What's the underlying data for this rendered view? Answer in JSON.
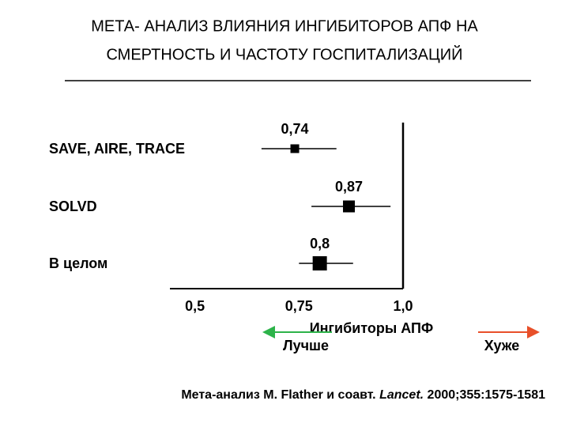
{
  "chart_data": {
    "type": "forest",
    "title": [
      "МЕТА- АНАЛИЗ ВЛИЯНИЯ ИНГИБИТОРОВ АПФ НА",
      "СМЕРТНОСТЬ И ЧАСТОТУ ГОСПИТАЛИЗАЦИЙ"
    ],
    "categories": [
      "SAVE, AIRE, TRACE",
      "SOLVD",
      "В целом"
    ],
    "values": [
      0.74,
      0.87,
      0.8
    ],
    "value_labels": [
      "0,74",
      "0,87",
      "0,8"
    ],
    "ci_low": [
      0.66,
      0.78,
      0.75
    ],
    "ci_high": [
      0.84,
      0.97,
      0.88
    ],
    "color": "#000000",
    "xlim": [
      0.44,
      1.0
    ],
    "xticks": [
      {
        "value": 0.5,
        "label": "0,5"
      },
      {
        "value": 0.75,
        "label": "0,75"
      },
      {
        "value": 1.0,
        "label": "1,0"
      }
    ],
    "reference_line": 1.0,
    "axis_label": "Ингибиторы АПФ",
    "better_label": "Лучше",
    "better_color": "#2db34a",
    "worse_label": "Хуже",
    "worse_color": "#e8502a",
    "source": [
      "Мета-анализ M. Flather и соавт. ",
      "Lancet.",
      " 2000;355:1575-1581"
    ]
  }
}
